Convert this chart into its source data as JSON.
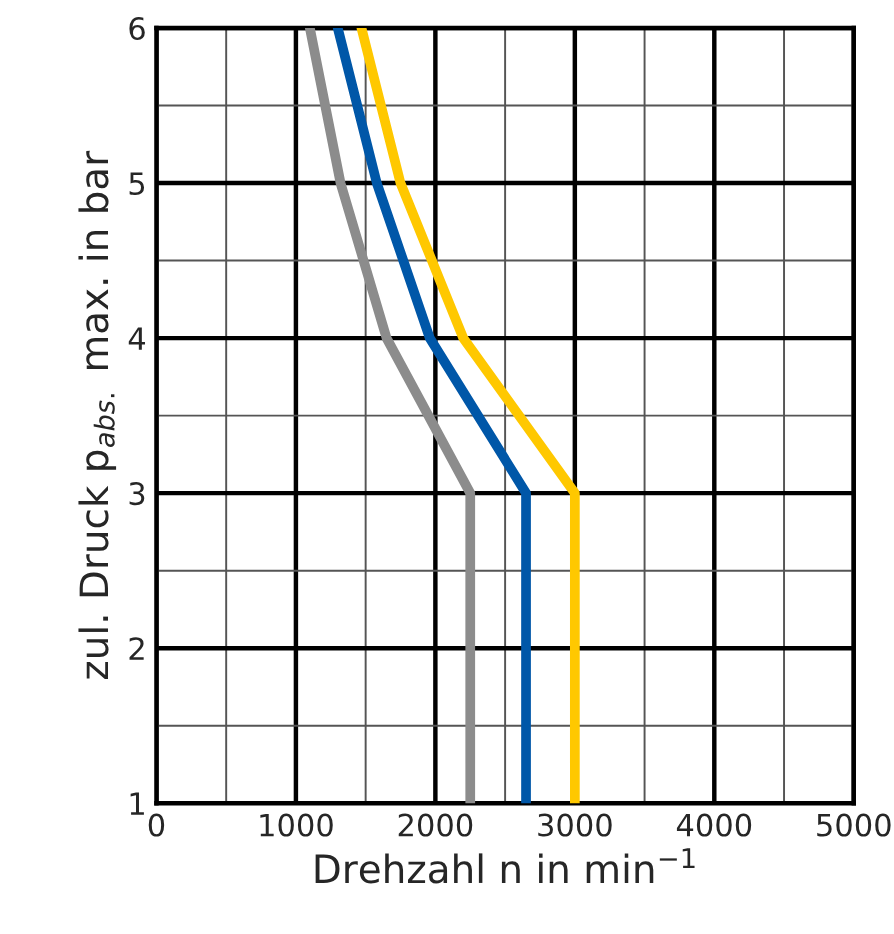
{
  "chart_data": {
    "type": "line",
    "xlabel": "Drehzahl n in min$^{−1}$",
    "ylabel": "zul. Druck p$_{abs.}$ max. in bar",
    "xlim": [
      0,
      5000
    ],
    "ylim": [
      1,
      6
    ],
    "xticks": [
      0,
      {
        "value": 500,
        "label": null
      },
      1000,
      {
        "value": 1500,
        "label": null
      },
      2000,
      {
        "value": 2500,
        "label": null
      },
      3000,
      {
        "value": 3500,
        "label": null
      },
      4000,
      {
        "value": 4500,
        "label": null
      },
      5000
    ],
    "yticks": [
      1,
      {
        "value": 1.5,
        "label": null
      },
      2,
      {
        "value": 2.5,
        "label": null
      },
      3,
      {
        "value": 3.5,
        "label": null
      },
      4,
      {
        "value": 4.5,
        "label": null
      },
      5,
      {
        "value": 5.5,
        "label": null
      },
      6
    ],
    "grid": true,
    "line_style": "solid",
    "marker": "none",
    "series": [
      {
        "color": "#8c8c8c",
        "x": [
          1100,
          1320,
          1650,
          1950,
          2250,
          2250
        ],
        "values": [
          6,
          5,
          4,
          3.5,
          3,
          1
        ]
      },
      {
        "color": "#0057a8",
        "x": [
          1300,
          1580,
          1960,
          2650,
          2650
        ],
        "values": [
          6,
          5,
          4,
          3,
          1
        ]
      },
      {
        "color": "#ffc800",
        "x": [
          1470,
          1750,
          2200,
          3000,
          3000
        ],
        "values": [
          6,
          5,
          4,
          3,
          1
        ]
      }
    ]
  }
}
